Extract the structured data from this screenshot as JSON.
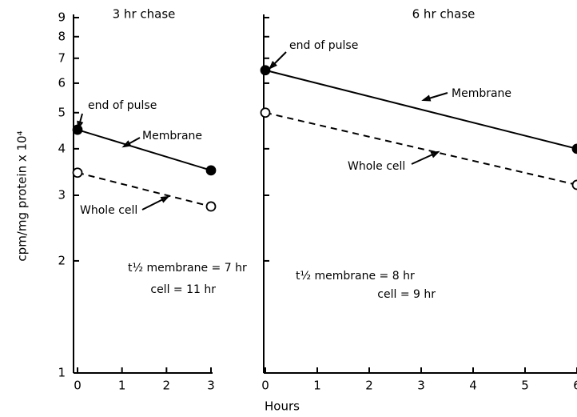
{
  "chart_data": [
    {
      "type": "line",
      "title": "3 hr chase",
      "ylabel": "cpm/mg protein x 10⁴",
      "yscale": "log",
      "x": [
        0,
        3
      ],
      "xlim": [
        0,
        3
      ],
      "xticks": [
        0,
        1,
        2,
        3
      ],
      "ylim": [
        1,
        9
      ],
      "yticks": [
        1,
        2,
        3,
        4,
        5,
        6,
        7,
        8,
        9
      ],
      "show_ytick_labels": true,
      "series": [
        {
          "name": "Membrane",
          "color": "#000000",
          "style": "solid",
          "marker": "filled",
          "values": [
            4.5,
            3.5
          ]
        },
        {
          "name": "Whole cell",
          "color": "#000000",
          "style": "dashed",
          "marker": "open",
          "values": [
            3.45,
            2.8
          ]
        }
      ],
      "annotations": [
        "end of pulse",
        "Membrane",
        "Whole cell",
        "t½ membrane = 7 hr",
        "cell = 11 hr"
      ]
    },
    {
      "type": "line",
      "title": "6 hr chase",
      "xlabel": "Hours",
      "yscale": "log",
      "x": [
        0,
        6
      ],
      "xlim": [
        0,
        6
      ],
      "xticks": [
        0,
        1,
        2,
        3,
        4,
        5,
        6
      ],
      "ylim": [
        1,
        9
      ],
      "yticks": [
        1,
        2,
        3,
        4,
        5,
        6,
        7,
        8,
        9
      ],
      "show_ytick_labels": false,
      "series": [
        {
          "name": "Membrane",
          "color": "#000000",
          "style": "solid",
          "marker": "filled",
          "values": [
            6.5,
            4.0
          ]
        },
        {
          "name": "Whole cell",
          "color": "#000000",
          "style": "dashed",
          "marker": "open",
          "values": [
            5.0,
            3.2
          ]
        }
      ],
      "annotations": [
        "end of pulse",
        "Membrane",
        "Whole cell",
        "t½ membrane = 8 hr",
        "cell = 9 hr"
      ]
    }
  ]
}
